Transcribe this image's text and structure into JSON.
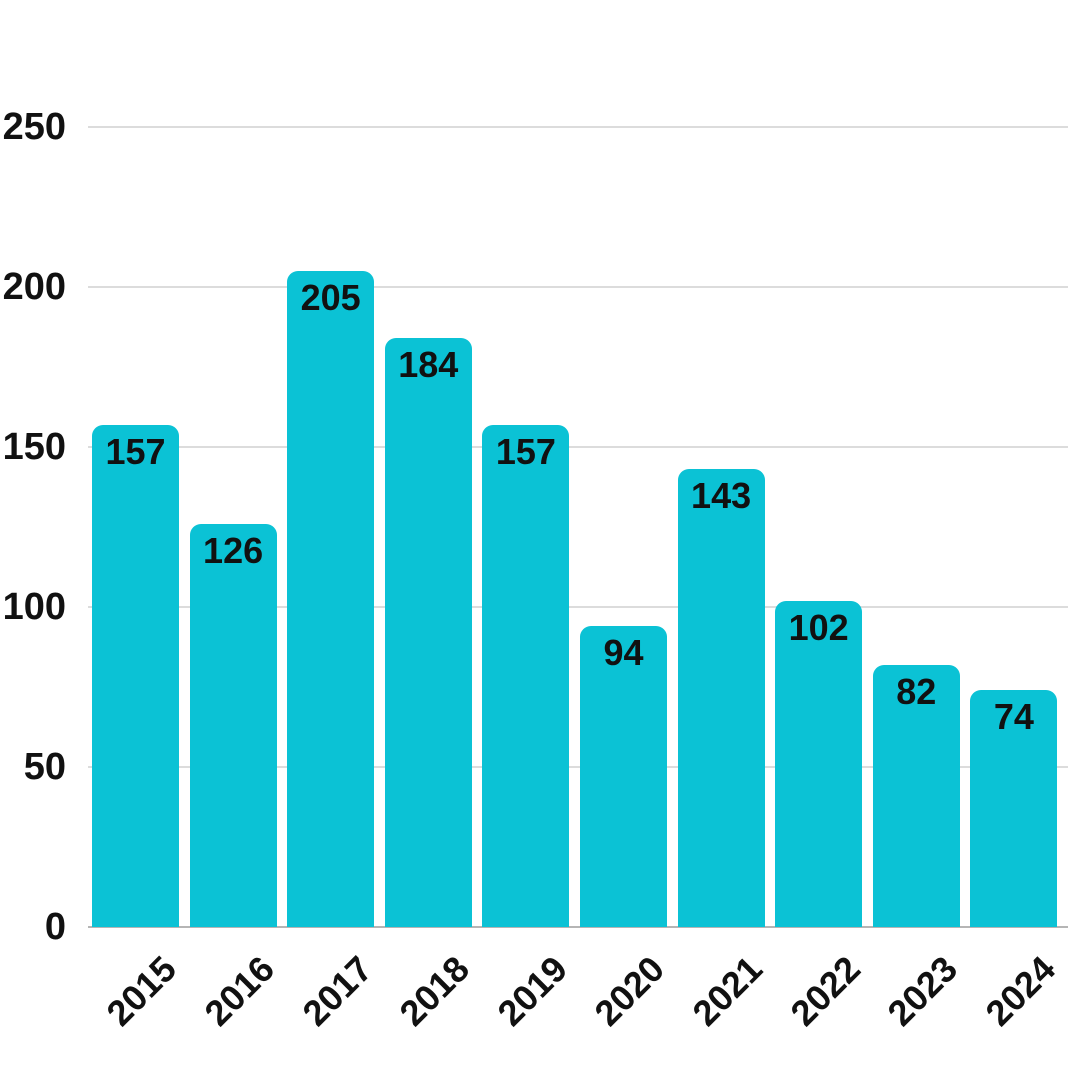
{
  "chart_data": {
    "type": "bar",
    "title": "",
    "xlabel": "",
    "ylabel": "",
    "categories": [
      "2015",
      "2016",
      "2017",
      "2018",
      "2019",
      "2020",
      "2021",
      "2022",
      "2023",
      "2024"
    ],
    "values": [
      157,
      126,
      205,
      184,
      157,
      94,
      143,
      102,
      82,
      74
    ],
    "ylim": [
      0,
      250
    ],
    "yticks": [
      0,
      50,
      100,
      150,
      200,
      250
    ],
    "grid": true,
    "legend": false,
    "bar_color": "#0bc2d5",
    "text_color": "#111111",
    "gridline_color": "#dcdcdc",
    "axis_line_color": "#b5b5b5",
    "background_color": "#ffffff"
  }
}
